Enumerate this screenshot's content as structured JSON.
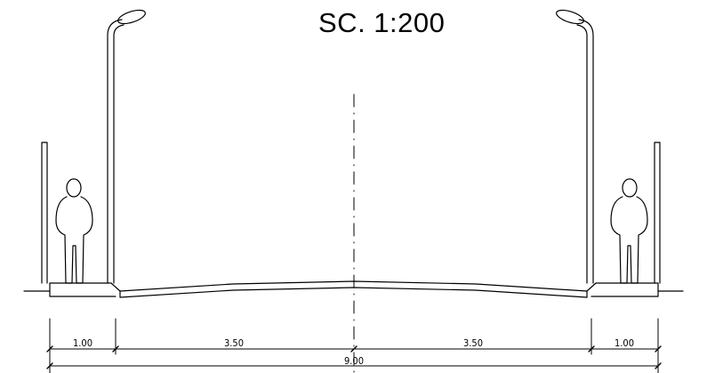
{
  "title": "SC. 1:200",
  "dimensions": {
    "sidewalk_left": "1.00",
    "lane_left": "3.50",
    "lane_right": "3.50",
    "sidewalk_right": "1.00",
    "total": "9.00"
  },
  "colors": {
    "line": "#000000",
    "background": "#ffffff"
  }
}
